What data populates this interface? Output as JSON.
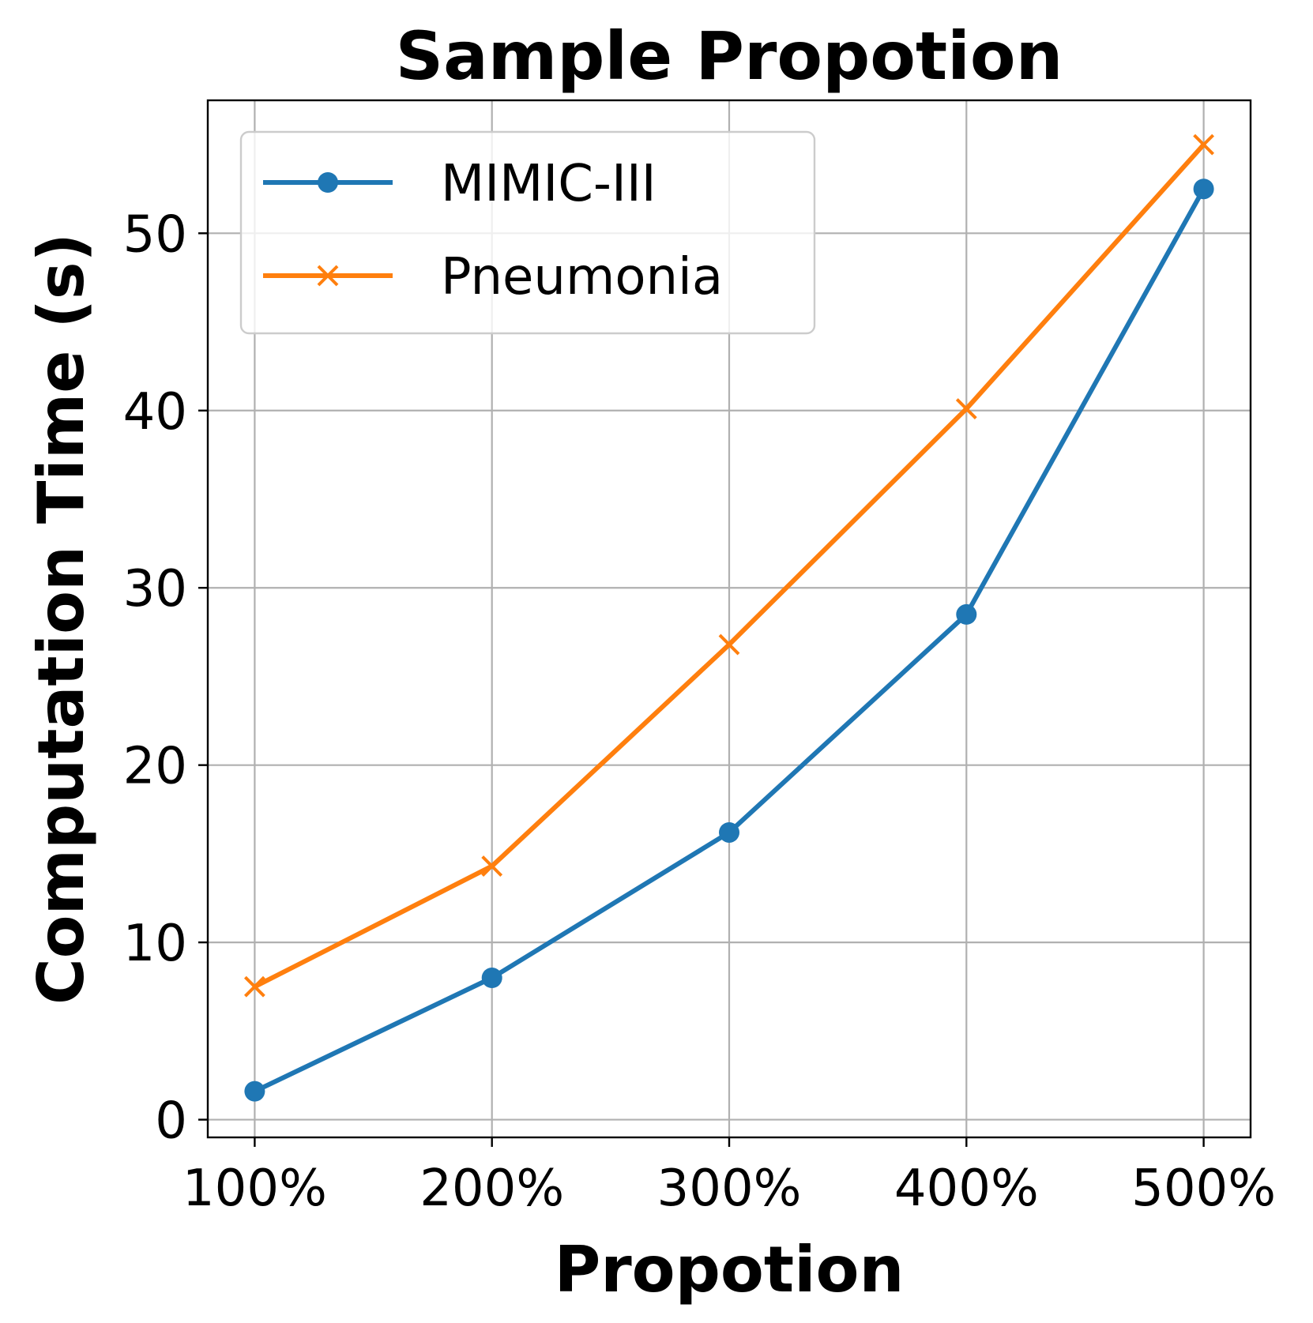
{
  "chart_data": {
    "type": "line",
    "title": "Sample Propotion",
    "xlabel": "Propotion",
    "ylabel": "Computation Time (s)",
    "categories": [
      "100%",
      "200%",
      "300%",
      "400%",
      "500%"
    ],
    "yticks": [
      0,
      10,
      20,
      30,
      40,
      50
    ],
    "ylim": [
      -1,
      57.5
    ],
    "grid": true,
    "legend_position": "top-left",
    "series": [
      {
        "name": "MIMIC-III",
        "color": "#1f77b4",
        "marker": "circle",
        "values": [
          1.6,
          8.0,
          16.2,
          28.5,
          52.5
        ]
      },
      {
        "name": "Pneumonia",
        "color": "#ff7f0e",
        "marker": "x",
        "values": [
          7.5,
          14.3,
          26.8,
          40.1,
          55.0
        ]
      }
    ]
  }
}
